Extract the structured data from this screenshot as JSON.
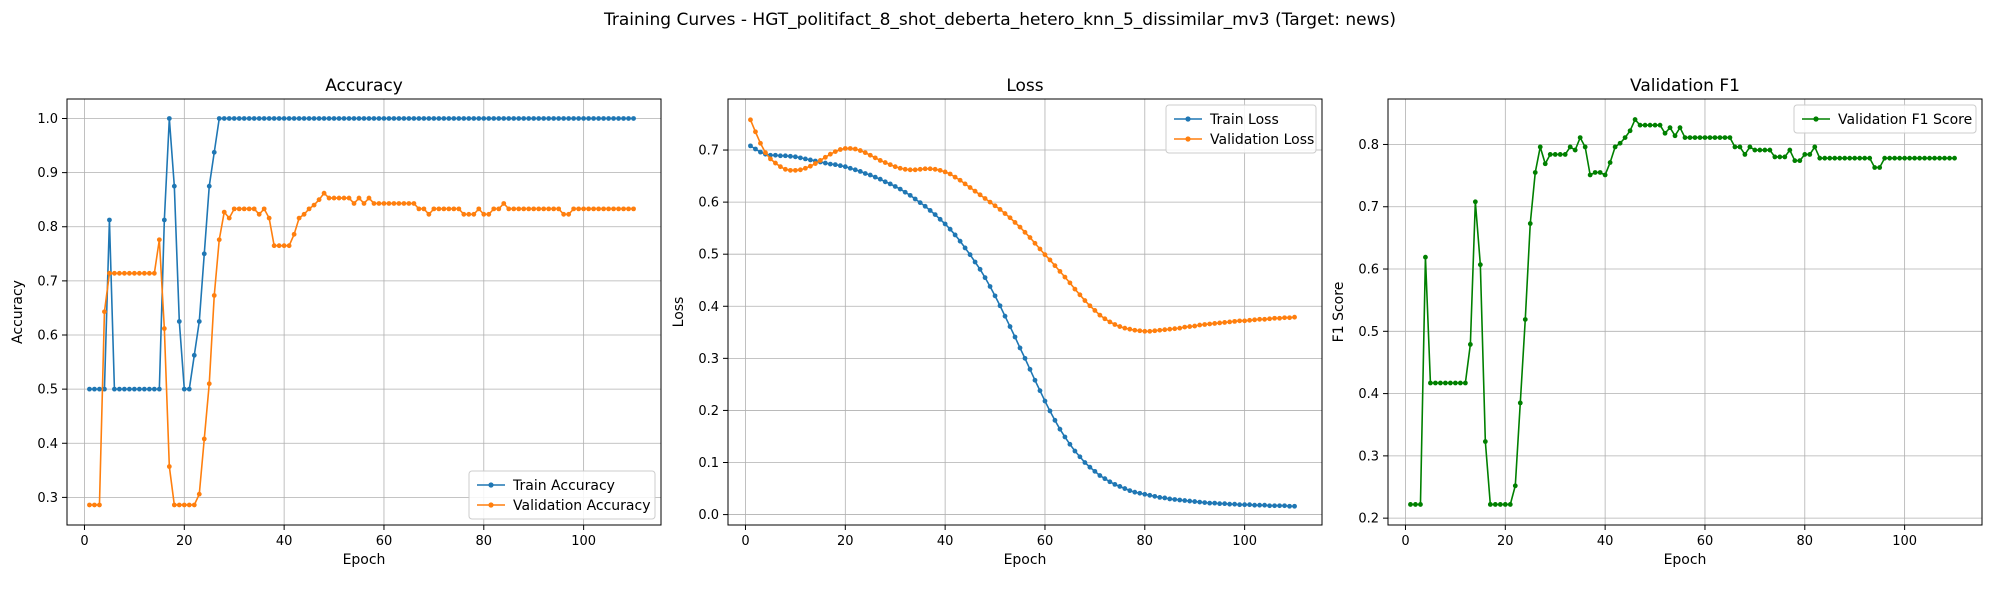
{
  "figure_title": "Training Curves - HGT_politifact_8_shot_deberta_hetero_knn_5_dissimilar_mv3 (Target: news)",
  "chart_data": [
    {
      "type": "line",
      "title": "Accuracy",
      "xlabel": "Epoch",
      "ylabel": "Accuracy",
      "xlim": [
        -3.5,
        115.5
      ],
      "ylim": [
        0.249,
        1.036
      ],
      "xticks": [
        0,
        20,
        40,
        60,
        80,
        100
      ],
      "yticks": [
        0.3,
        0.4,
        0.5,
        0.6,
        0.7,
        0.8,
        0.9,
        1.0
      ],
      "ytick_labels": [
        "0.3",
        "0.4",
        "0.5",
        "0.6",
        "0.7",
        "0.8",
        "0.9",
        "1.0"
      ],
      "grid": true,
      "legend_loc": "lower right",
      "series": [
        {
          "name": "Train Accuracy",
          "color": "#1f77b4",
          "x_start": 1,
          "values": [
            0.5,
            0.5,
            0.5,
            0.5,
            0.8125,
            0.5,
            0.5,
            0.5,
            0.5,
            0.5,
            0.5,
            0.5,
            0.5,
            0.5,
            0.5,
            0.8125,
            1.0,
            0.875,
            0.625,
            0.5,
            0.5,
            0.5625,
            0.625,
            0.75,
            0.875,
            0.9375,
            1.0,
            1.0,
            1.0,
            1.0,
            1.0,
            1.0,
            1.0,
            1.0,
            1.0,
            1.0,
            1.0,
            1.0,
            1.0,
            1.0,
            1.0,
            1.0,
            1.0,
            1.0,
            1.0,
            1.0,
            1.0,
            1.0,
            1.0,
            1.0,
            1.0,
            1.0,
            1.0,
            1.0,
            1.0,
            1.0,
            1.0,
            1.0,
            1.0,
            1.0,
            1.0,
            1.0,
            1.0,
            1.0,
            1.0,
            1.0,
            1.0,
            1.0,
            1.0,
            1.0,
            1.0,
            1.0,
            1.0,
            1.0,
            1.0,
            1.0,
            1.0,
            1.0,
            1.0,
            1.0,
            1.0,
            1.0,
            1.0,
            1.0,
            1.0,
            1.0,
            1.0,
            1.0,
            1.0,
            1.0,
            1.0,
            1.0,
            1.0,
            1.0,
            1.0,
            1.0,
            1.0,
            1.0,
            1.0,
            1.0,
            1.0,
            1.0,
            1.0,
            1.0,
            1.0,
            1.0,
            1.0,
            1.0,
            1.0,
            1.0
          ]
        },
        {
          "name": "Validation Accuracy",
          "color": "#ff7f0e",
          "x_start": 1,
          "values": [
            0.286,
            0.286,
            0.286,
            0.643,
            0.714,
            0.714,
            0.714,
            0.714,
            0.714,
            0.714,
            0.714,
            0.714,
            0.714,
            0.714,
            0.776,
            0.612,
            0.357,
            0.286,
            0.286,
            0.286,
            0.286,
            0.286,
            0.306,
            0.408,
            0.51,
            0.673,
            0.776,
            0.827,
            0.816,
            0.833,
            0.833,
            0.833,
            0.833,
            0.833,
            0.823,
            0.833,
            0.816,
            0.765,
            0.765,
            0.765,
            0.765,
            0.786,
            0.816,
            0.823,
            0.833,
            0.84,
            0.85,
            0.862,
            0.853,
            0.853,
            0.853,
            0.853,
            0.853,
            0.843,
            0.853,
            0.843,
            0.853,
            0.843,
            0.843,
            0.843,
            0.843,
            0.843,
            0.843,
            0.843,
            0.843,
            0.843,
            0.833,
            0.833,
            0.823,
            0.833,
            0.833,
            0.833,
            0.833,
            0.833,
            0.833,
            0.823,
            0.823,
            0.823,
            0.833,
            0.823,
            0.823,
            0.833,
            0.833,
            0.843,
            0.833,
            0.833,
            0.833,
            0.833,
            0.833,
            0.833,
            0.833,
            0.833,
            0.833,
            0.833,
            0.833,
            0.823,
            0.823,
            0.833,
            0.833,
            0.833,
            0.833,
            0.833,
            0.833,
            0.833,
            0.833,
            0.833,
            0.833,
            0.833,
            0.833,
            0.833
          ]
        }
      ]
    },
    {
      "type": "line",
      "title": "Loss",
      "xlabel": "Epoch",
      "ylabel": "Loss",
      "xlim": [
        -3.5,
        115.5
      ],
      "ylim": [
        -0.02,
        0.798
      ],
      "xticks": [
        0,
        20,
        40,
        60,
        80,
        100
      ],
      "yticks": [
        0.0,
        0.1,
        0.2,
        0.3,
        0.4,
        0.5,
        0.6,
        0.7
      ],
      "ytick_labels": [
        "0.0",
        "0.1",
        "0.2",
        "0.3",
        "0.4",
        "0.5",
        "0.6",
        "0.7"
      ],
      "grid": true,
      "legend_loc": "upper right",
      "series": [
        {
          "name": "Train Loss",
          "color": "#1f77b4",
          "x_start": 1,
          "values": [
            0.708,
            0.702,
            0.696,
            0.692,
            0.69,
            0.69,
            0.689,
            0.689,
            0.688,
            0.687,
            0.685,
            0.683,
            0.681,
            0.679,
            0.677,
            0.675,
            0.673,
            0.672,
            0.67,
            0.668,
            0.665,
            0.662,
            0.659,
            0.655,
            0.652,
            0.648,
            0.644,
            0.639,
            0.635,
            0.63,
            0.625,
            0.619,
            0.613,
            0.606,
            0.599,
            0.592,
            0.584,
            0.576,
            0.567,
            0.558,
            0.548,
            0.537,
            0.525,
            0.512,
            0.499,
            0.485,
            0.471,
            0.455,
            0.438,
            0.42,
            0.401,
            0.381,
            0.361,
            0.341,
            0.32,
            0.3,
            0.279,
            0.258,
            0.238,
            0.218,
            0.199,
            0.181,
            0.164,
            0.149,
            0.135,
            0.122,
            0.111,
            0.1,
            0.091,
            0.083,
            0.075,
            0.069,
            0.063,
            0.058,
            0.054,
            0.05,
            0.046,
            0.043,
            0.041,
            0.039,
            0.037,
            0.035,
            0.033,
            0.032,
            0.03,
            0.029,
            0.028,
            0.027,
            0.026,
            0.025,
            0.024,
            0.023,
            0.022,
            0.022,
            0.021,
            0.021,
            0.02,
            0.02,
            0.019,
            0.019,
            0.019,
            0.018,
            0.018,
            0.018,
            0.017,
            0.017,
            0.017,
            0.017,
            0.016,
            0.016
          ]
        },
        {
          "name": "Validation Loss",
          "color": "#ff7f0e",
          "x_start": 1,
          "values": [
            0.758,
            0.735,
            0.713,
            0.695,
            0.683,
            0.675,
            0.668,
            0.663,
            0.661,
            0.661,
            0.662,
            0.665,
            0.669,
            0.674,
            0.68,
            0.686,
            0.692,
            0.697,
            0.701,
            0.703,
            0.703,
            0.702,
            0.699,
            0.695,
            0.69,
            0.685,
            0.68,
            0.676,
            0.672,
            0.668,
            0.665,
            0.663,
            0.662,
            0.662,
            0.663,
            0.664,
            0.664,
            0.663,
            0.661,
            0.658,
            0.654,
            0.648,
            0.642,
            0.635,
            0.628,
            0.621,
            0.614,
            0.607,
            0.6,
            0.593,
            0.586,
            0.578,
            0.57,
            0.561,
            0.552,
            0.542,
            0.532,
            0.521,
            0.51,
            0.499,
            0.489,
            0.478,
            0.467,
            0.456,
            0.445,
            0.433,
            0.422,
            0.411,
            0.401,
            0.392,
            0.383,
            0.376,
            0.37,
            0.365,
            0.361,
            0.358,
            0.356,
            0.354,
            0.353,
            0.352,
            0.352,
            0.353,
            0.354,
            0.355,
            0.356,
            0.357,
            0.358,
            0.36,
            0.361,
            0.362,
            0.364,
            0.365,
            0.366,
            0.367,
            0.368,
            0.369,
            0.37,
            0.371,
            0.372,
            0.372,
            0.373,
            0.374,
            0.375,
            0.375,
            0.376,
            0.377,
            0.377,
            0.378,
            0.378,
            0.379
          ]
        }
      ]
    },
    {
      "type": "line",
      "title": "Validation F1",
      "xlabel": "Epoch",
      "ylabel": "F1 Score",
      "xlim": [
        -3.5,
        115.5
      ],
      "ylim": [
        0.189,
        0.873
      ],
      "xticks": [
        0,
        20,
        40,
        60,
        80,
        100
      ],
      "yticks": [
        0.2,
        0.3,
        0.4,
        0.5,
        0.6,
        0.7,
        0.8
      ],
      "ytick_labels": [
        "0.2",
        "0.3",
        "0.4",
        "0.5",
        "0.6",
        "0.7",
        "0.8"
      ],
      "grid": true,
      "legend_loc": "upper right",
      "series": [
        {
          "name": "Validation F1 Score",
          "color": "#008000",
          "x_start": 1,
          "values": [
            0.222,
            0.222,
            0.222,
            0.619,
            0.417,
            0.417,
            0.417,
            0.417,
            0.417,
            0.417,
            0.417,
            0.417,
            0.479,
            0.708,
            0.607,
            0.323,
            0.222,
            0.222,
            0.222,
            0.222,
            0.222,
            0.252,
            0.385,
            0.519,
            0.673,
            0.755,
            0.796,
            0.769,
            0.784,
            0.784,
            0.784,
            0.784,
            0.796,
            0.791,
            0.811,
            0.796,
            0.751,
            0.755,
            0.755,
            0.751,
            0.771,
            0.796,
            0.802,
            0.811,
            0.822,
            0.84,
            0.831,
            0.831,
            0.831,
            0.831,
            0.831,
            0.818,
            0.827,
            0.814,
            0.827,
            0.811,
            0.811,
            0.811,
            0.811,
            0.811,
            0.811,
            0.811,
            0.811,
            0.811,
            0.811,
            0.796,
            0.796,
            0.784,
            0.796,
            0.791,
            0.791,
            0.791,
            0.791,
            0.78,
            0.78,
            0.78,
            0.791,
            0.774,
            0.774,
            0.784,
            0.784,
            0.796,
            0.778,
            0.778,
            0.778,
            0.778,
            0.778,
            0.778,
            0.778,
            0.778,
            0.778,
            0.778,
            0.778,
            0.763,
            0.763,
            0.778,
            0.778,
            0.778,
            0.778,
            0.778,
            0.778,
            0.778,
            0.778,
            0.778,
            0.778,
            0.778,
            0.778,
            0.778,
            0.778,
            0.778
          ]
        }
      ]
    }
  ]
}
